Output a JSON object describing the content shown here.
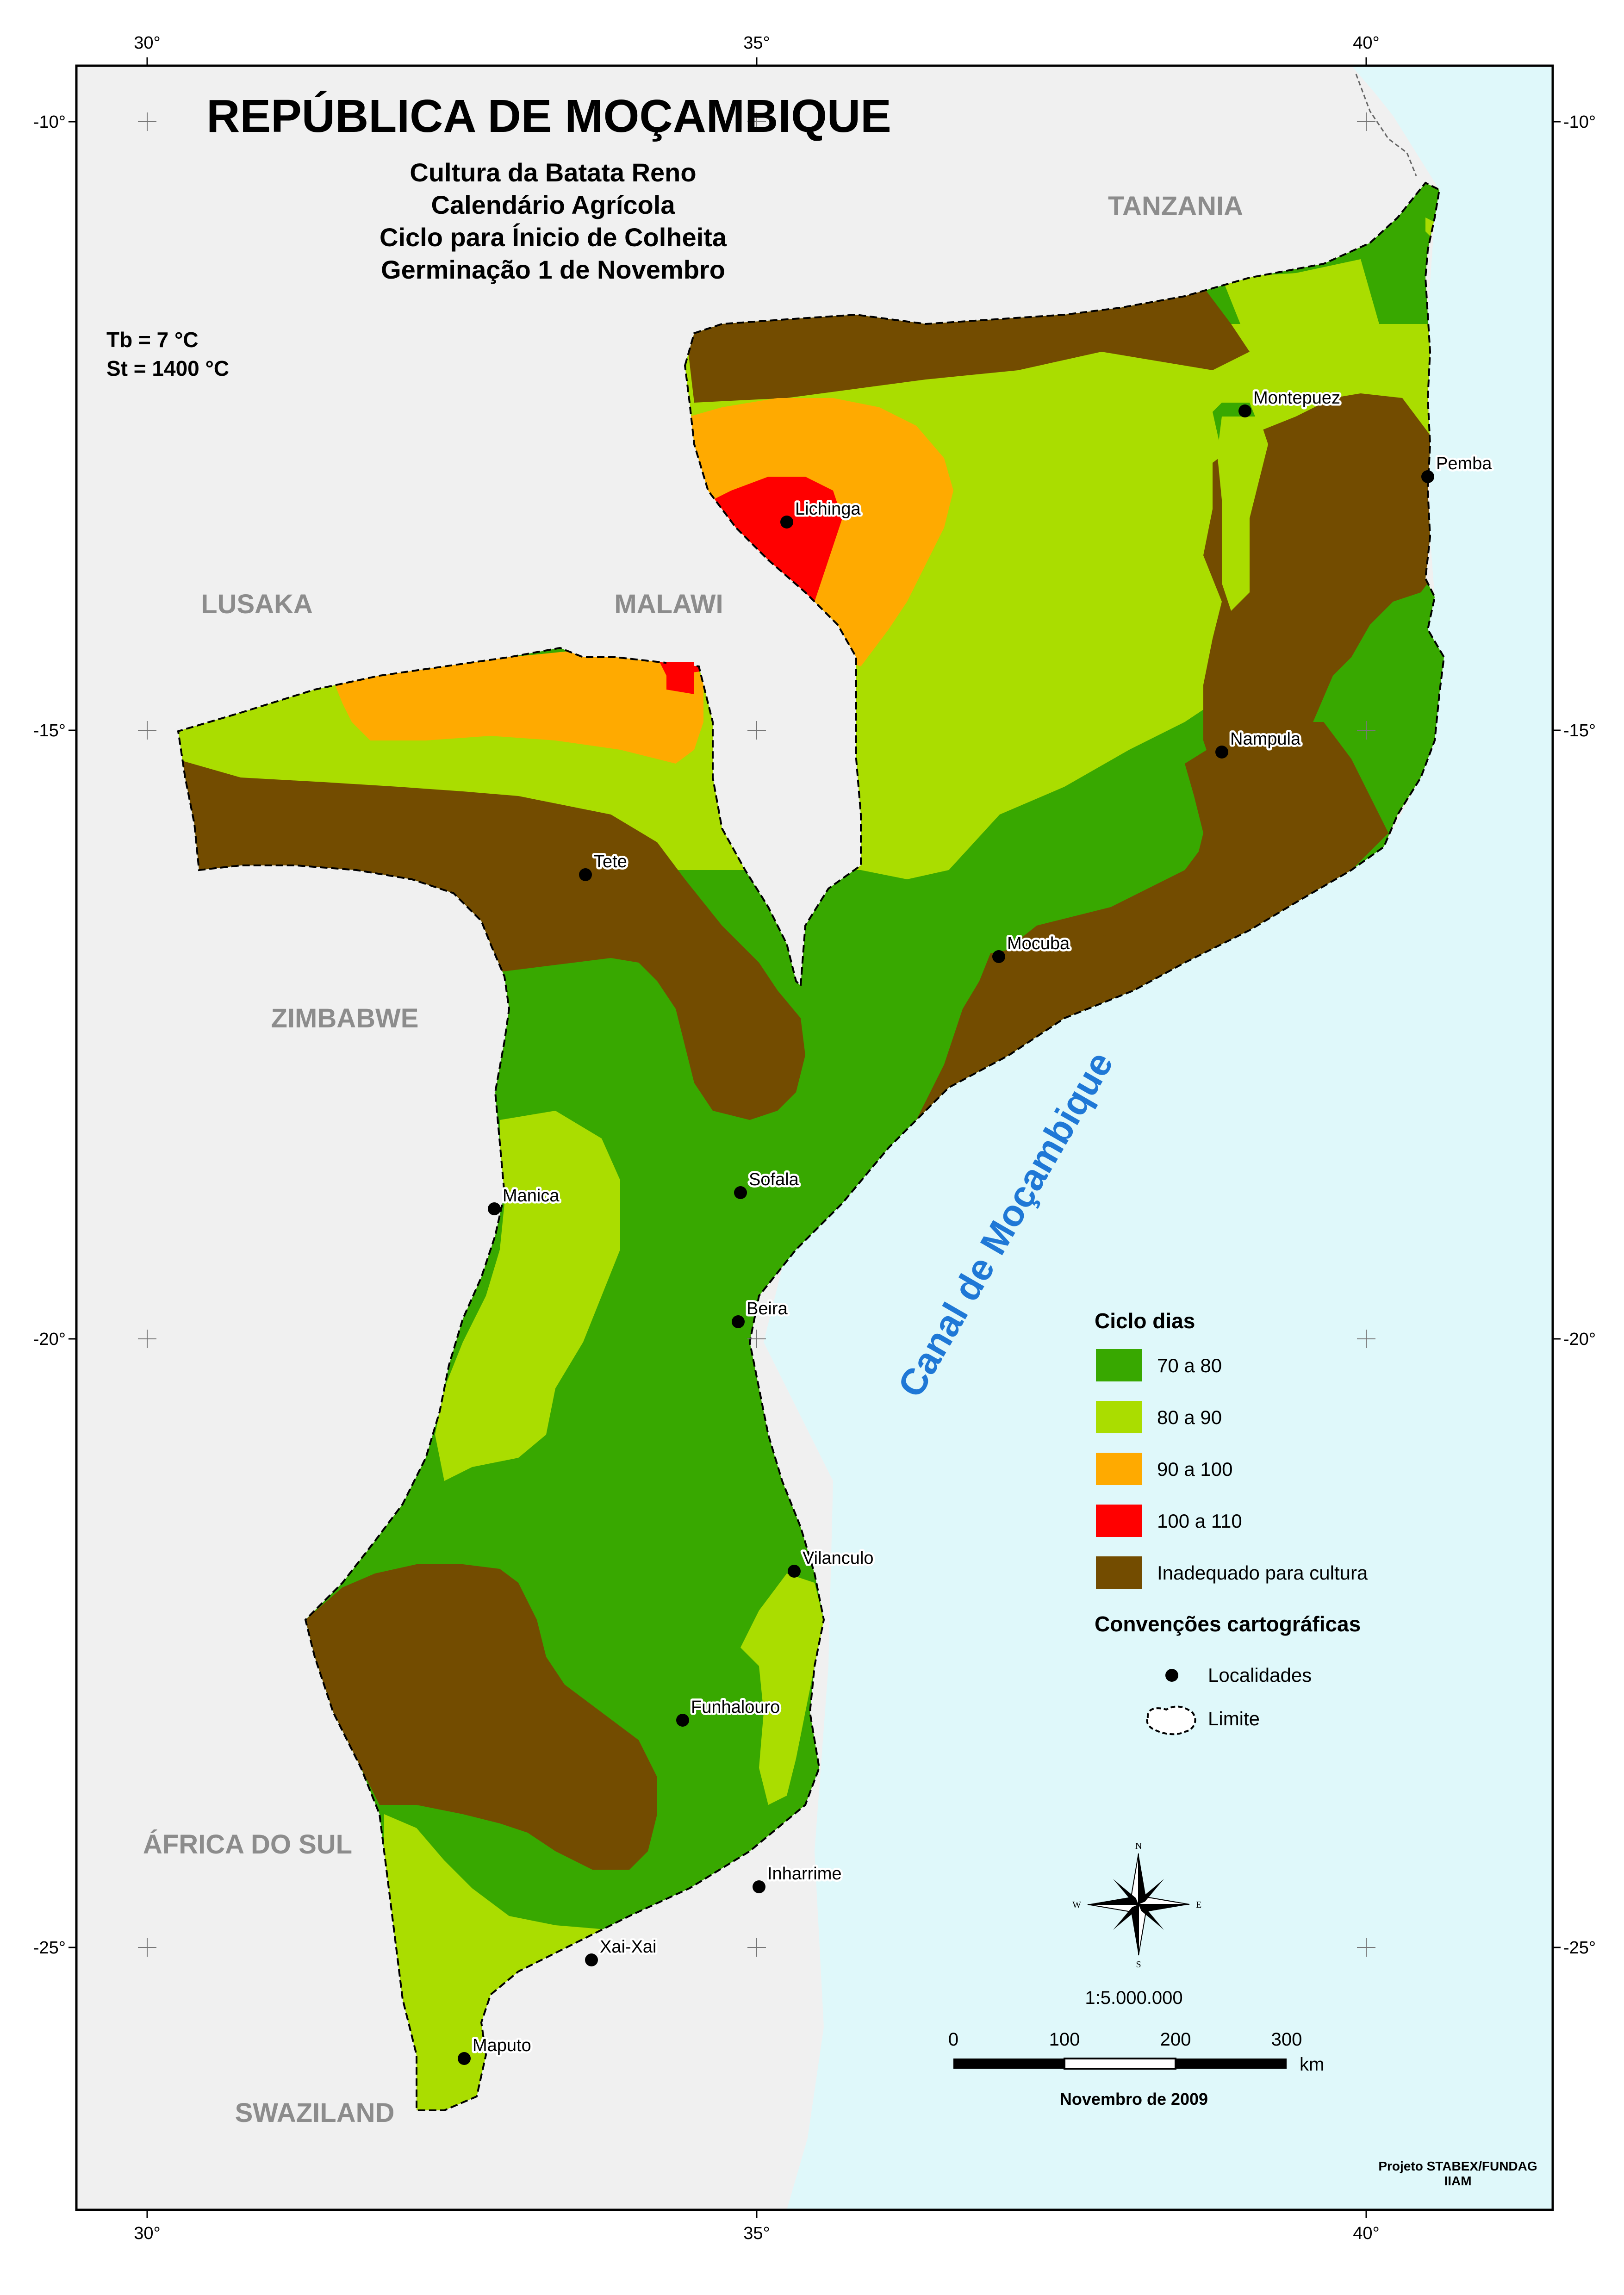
{
  "title": "REPÚBLICA DE MOÇAMBIQUE",
  "subtitle_lines": [
    "Cultura da Batata Reno",
    "Calendário Agrícola",
    "Ciclo para Ínicio de Colheita",
    "Germinação 1 de Novembro"
  ],
  "parameters": [
    "Tb = 7 °C",
    "St =  1400 °C"
  ],
  "graticule": {
    "longitudes": [
      "30°",
      "35°",
      "40°"
    ],
    "latitudes": [
      "-10°",
      "-15°",
      "-20°",
      "-25°"
    ]
  },
  "countries": [
    "TANZANIA",
    "LUSAKA",
    "MALAWI",
    "ZIMBABWE",
    "ÁFRICA DO SUL",
    "SWAZILAND"
  ],
  "sea_label": "Canal de Moçambique",
  "localities": [
    "Montepuez",
    "Pemba",
    "Lichinga",
    "Nampula",
    "Tete",
    "Mocuba",
    "Manica",
    "Sofala",
    "Beira",
    "Vilanculo",
    "Funhalouro",
    "Inharrime",
    "Xai-Xai",
    "Maputo"
  ],
  "legend": {
    "title": "Ciclo dias",
    "classes": [
      {
        "label": "70 a 80",
        "color": "#38a800"
      },
      {
        "label": "80 a 90",
        "color": "#aadd00"
      },
      {
        "label": "90 a 100",
        "color": "#ffaa00"
      },
      {
        "label": "100 a 110",
        "color": "#ff0000"
      },
      {
        "label": "Inadequado para cultura",
        "color": "#734c00"
      }
    ],
    "conventions_title": "Convenções cartográficas",
    "conventions": [
      "Localidades",
      "Limite"
    ]
  },
  "colors": {
    "land_outside": "#f0f0f0",
    "sea": "#dff8fa"
  },
  "compass": {
    "n": "N",
    "s": "S",
    "e": "E",
    "w": "W"
  },
  "scale": {
    "ratio": "1:5.000.000",
    "ticks": [
      "0",
      "100",
      "200",
      "300"
    ],
    "unit": "km"
  },
  "date": "Novembro de 2009",
  "credits": [
    "Projeto STABEX/FUNDAG",
    "IIAM"
  ]
}
